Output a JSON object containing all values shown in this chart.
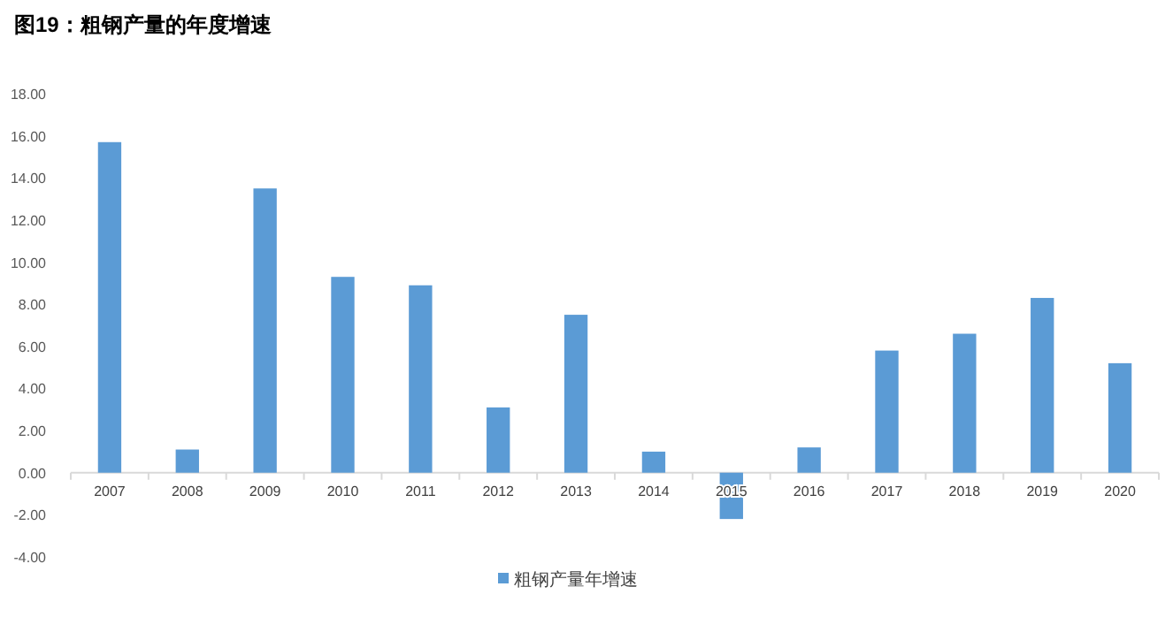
{
  "chart_data": {
    "type": "bar",
    "title": "图19：粗钢产量的年度增速",
    "categories": [
      "2007",
      "2008",
      "2009",
      "2010",
      "2011",
      "2012",
      "2013",
      "2014",
      "2015",
      "2016",
      "2017",
      "2018",
      "2019",
      "2020"
    ],
    "series": [
      {
        "name": "粗钢产量年增速",
        "color": "#5b9bd5",
        "values": [
          15.7,
          1.1,
          13.5,
          9.3,
          8.9,
          3.1,
          7.5,
          1.0,
          -2.2,
          1.2,
          5.8,
          6.6,
          8.3,
          5.2
        ]
      }
    ],
    "ylim": [
      -4,
      18
    ],
    "yticks": [
      {
        "value": -4,
        "label": "-4.00"
      },
      {
        "value": -2,
        "label": "-2.00"
      },
      {
        "value": 0,
        "label": "0.00"
      },
      {
        "value": 2,
        "label": "2.00"
      },
      {
        "value": 4,
        "label": "4.00"
      },
      {
        "value": 6,
        "label": "6.00"
      },
      {
        "value": 8,
        "label": "8.00"
      },
      {
        "value": 10,
        "label": "10.00"
      },
      {
        "value": 12,
        "label": "12.00"
      },
      {
        "value": 14,
        "label": "14.00"
      },
      {
        "value": 16,
        "label": "16.00"
      },
      {
        "value": 18,
        "label": "18.00"
      }
    ],
    "grid": false,
    "legend": "bottom"
  }
}
